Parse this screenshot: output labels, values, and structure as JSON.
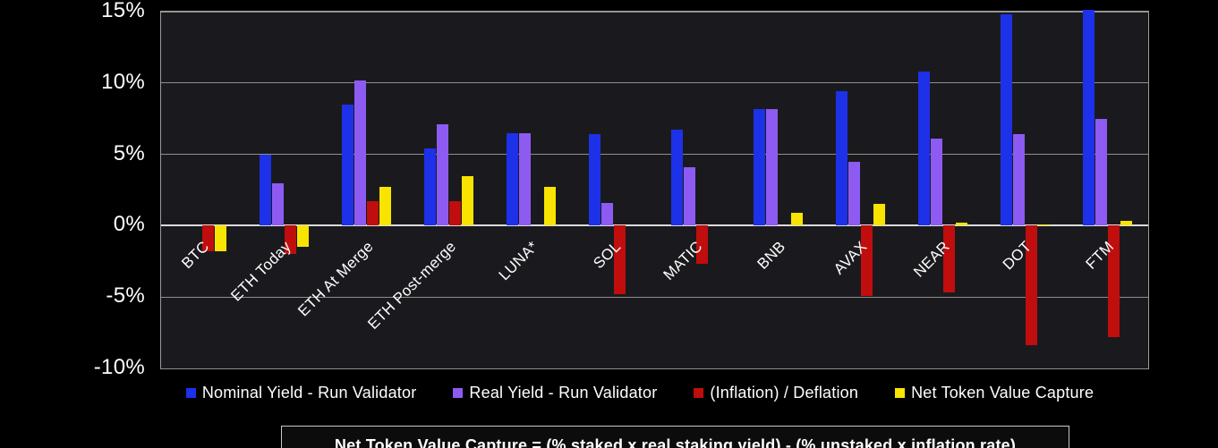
{
  "chart_data": {
    "type": "bar",
    "title": "",
    "categories": [
      "BTC",
      "ETH Today",
      "ETH At Merge",
      "ETH Post-merge",
      "LUNA*",
      "SOL",
      "MATIC",
      "BNB",
      "AVAX",
      "NEAR",
      "DOT",
      "FTM"
    ],
    "series": [
      {
        "name": "Nominal Yield - Run Validator",
        "color": "#1d31e8",
        "values": [
          0,
          5.0,
          8.5,
          5.4,
          6.5,
          6.4,
          6.7,
          8.2,
          9.4,
          10.8,
          14.8,
          15.1
        ]
      },
      {
        "name": "Real Yield - Run Validator",
        "color": "#8d5bf2",
        "values": [
          0,
          3.0,
          10.2,
          7.1,
          6.5,
          1.6,
          4.1,
          8.2,
          4.5,
          6.1,
          6.4,
          7.5
        ]
      },
      {
        "name": "(Inflation) / Deflation",
        "color": "#c00d0d",
        "values": [
          -1.8,
          -2.0,
          1.7,
          1.7,
          0,
          -4.8,
          -2.7,
          0,
          -4.9,
          -4.7,
          -8.4,
          -7.8
        ]
      },
      {
        "name": "Net Token Value Capture",
        "color": "#f8e400",
        "values": [
          -1.8,
          -1.5,
          2.7,
          3.5,
          2.7,
          0,
          0,
          0.9,
          1.5,
          0.2,
          0.1,
          0.35
        ]
      }
    ],
    "xlabel": "",
    "ylabel": "",
    "ylim": [
      -10,
      15
    ],
    "y_ticks": [
      {
        "value": 15,
        "label": "15%"
      },
      {
        "value": 10,
        "label": "10%"
      },
      {
        "value": 5,
        "label": "5%"
      },
      {
        "value": 0,
        "label": "0%"
      },
      {
        "value": -5,
        "label": "-5%"
      },
      {
        "value": -10,
        "label": "-10%"
      }
    ],
    "grid": true,
    "legend_position": "bottom",
    "plot_background": "#1a1a1e",
    "page_background": "#000000",
    "gridline_color": "#8f8f8f",
    "zero_line_color": "#dcdcdc",
    "text_color": "#ffffff"
  },
  "caption": {
    "text": "Net Token Value Capture = (% staked x real staking yield) - (% unstaked x inflation rate)"
  }
}
